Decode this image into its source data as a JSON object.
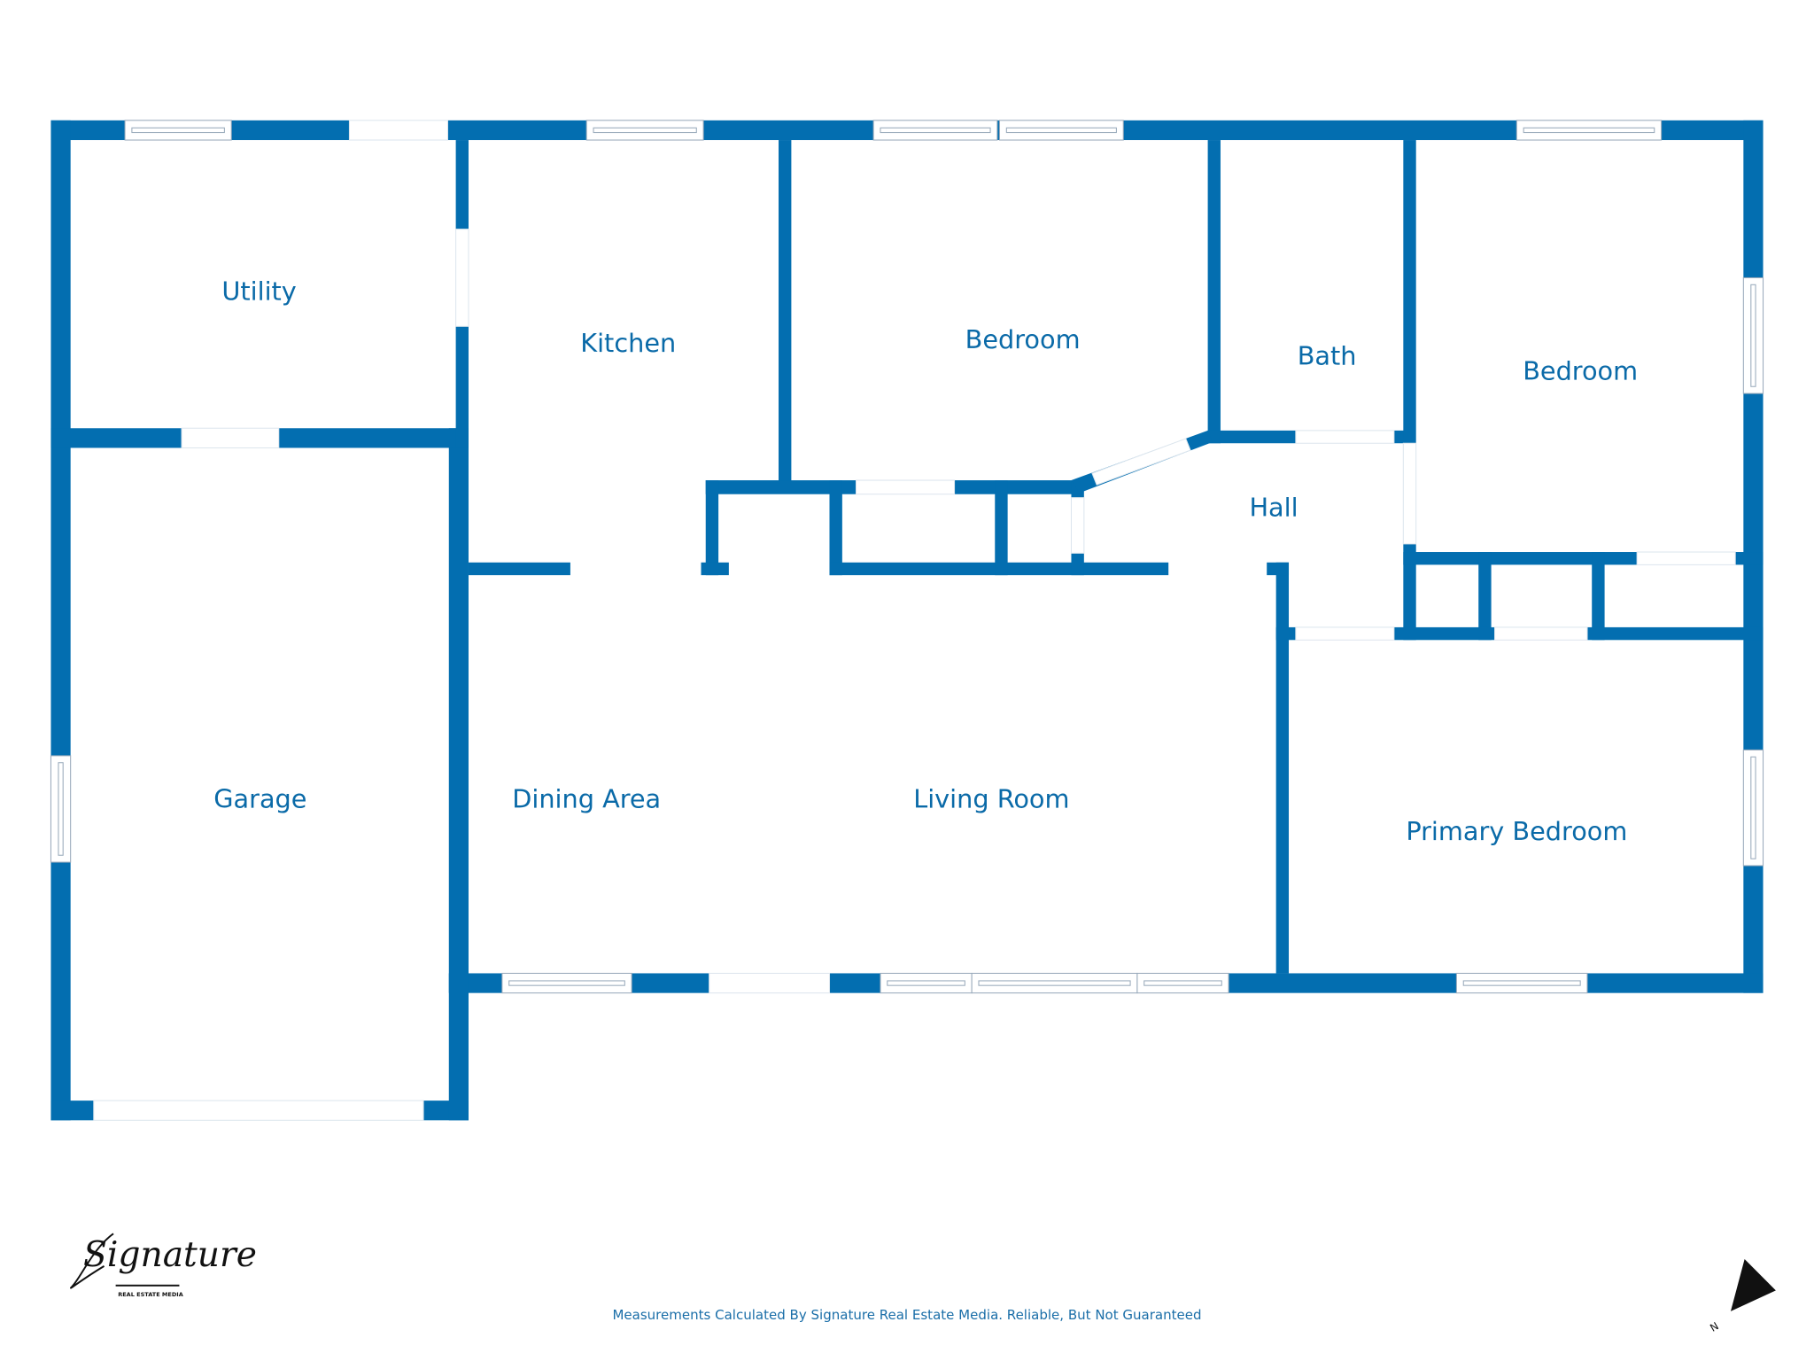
{
  "colors": {
    "wall": "#036eb0",
    "label": "#0a6aa8",
    "background": "#ffffff"
  },
  "rooms": {
    "utility": "Utility",
    "kitchen": "Kitchen",
    "bedroom_1": "Bedroom",
    "bath": "Bath",
    "bedroom_2": "Bedroom",
    "hall": "Hall",
    "garage": "Garage",
    "dining": "Dining Area",
    "living": "Living Room",
    "primary": "Primary Bedroom"
  },
  "footer": {
    "disclaimer": "Measurements Calculated By Signature Real Estate Media. Reliable, But Not Guaranteed"
  },
  "logo": {
    "name": "Signature",
    "tagline": "REAL ESTATE MEDIA"
  },
  "compass": {
    "icon": "north-arrow-icon",
    "label": "N"
  }
}
